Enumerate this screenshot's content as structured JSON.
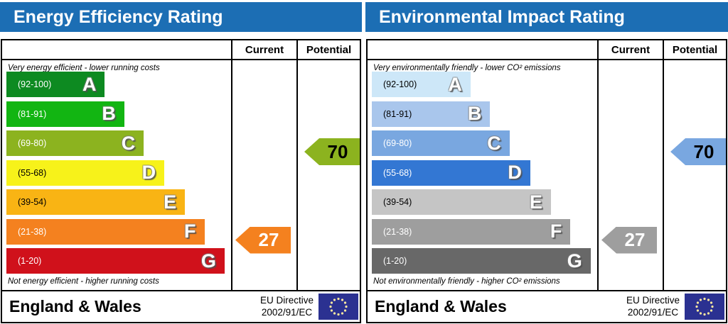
{
  "colors": {
    "header_bg": "#1c6eb4",
    "border": "#000000",
    "flag_bg": "#2b3191",
    "flag_stars": "#ffe9a0"
  },
  "panels": [
    {
      "title": "Energy Efficiency Rating",
      "columns": {
        "current": "Current",
        "potential": "Potential"
      },
      "caption_top": "Very energy efficient - lower running costs",
      "caption_bottom": "Not energy efficient - higher running costs",
      "bands": [
        {
          "letter": "A",
          "range": "(92-100)",
          "color": "#0d8a21",
          "width": "43%",
          "range_color": "#ffffff"
        },
        {
          "letter": "B",
          "range": "(81-91)",
          "color": "#12b512",
          "width": "51.5%",
          "range_color": "#ffffff"
        },
        {
          "letter": "C",
          "range": "(69-80)",
          "color": "#8cb31f",
          "width": "60%",
          "range_color": "#ffffff"
        },
        {
          "letter": "D",
          "range": "(55-68)",
          "color": "#f7f21a",
          "width": "69%",
          "range_color": "#000000"
        },
        {
          "letter": "E",
          "range": "(39-54)",
          "color": "#f9b414",
          "width": "78%",
          "range_color": "#000000"
        },
        {
          "letter": "F",
          "range": "(21-38)",
          "color": "#f4811f",
          "width": "86.5%",
          "range_color": "#ffffff"
        },
        {
          "letter": "G",
          "range": "(1-20)",
          "color": "#d0111b",
          "width": "95.3%",
          "range_color": "#ffffff"
        }
      ],
      "current": {
        "value": "27",
        "text_color": "#ffffff"
      },
      "potential": {
        "value": "70",
        "text_color": "#000000"
      },
      "footer": {
        "region": "England & Wales",
        "directive_line1": "EU Directive",
        "directive_line2": "2002/91/EC"
      }
    },
    {
      "title": "Environmental Impact Rating",
      "columns": {
        "current": "Current",
        "potential": "Potential"
      },
      "caption_top": "Very environmentally friendly - lower CO² emissions",
      "caption_bottom": "Not environmentally friendly - higher CO² emissions",
      "bands": [
        {
          "letter": "A",
          "range": "(92-100)",
          "color": "#cde7f8",
          "width": "43%",
          "range_color": "#000000"
        },
        {
          "letter": "B",
          "range": "(81-91)",
          "color": "#a9c6ec",
          "width": "51.5%",
          "range_color": "#000000"
        },
        {
          "letter": "C",
          "range": "(69-80)",
          "color": "#79a7e0",
          "width": "60%",
          "range_color": "#ffffff"
        },
        {
          "letter": "D",
          "range": "(55-68)",
          "color": "#3377d3",
          "width": "69%",
          "range_color": "#ffffff"
        },
        {
          "letter": "E",
          "range": "(39-54)",
          "color": "#c5c5c5",
          "width": "78%",
          "range_color": "#000000"
        },
        {
          "letter": "F",
          "range": "(21-38)",
          "color": "#9e9e9e",
          "width": "86.5%",
          "range_color": "#ffffff"
        },
        {
          "letter": "G",
          "range": "(1-20)",
          "color": "#686868",
          "width": "95.3%",
          "range_color": "#ffffff"
        }
      ],
      "current": {
        "value": "27",
        "text_color": "#ffffff"
      },
      "potential": {
        "value": "70",
        "text_color": "#000000"
      },
      "footer": {
        "region": "England & Wales",
        "directive_line1": "EU Directive",
        "directive_line2": "2002/91/EC"
      }
    }
  ],
  "band_thresholds": [
    92,
    81,
    69,
    55,
    39,
    21,
    1
  ],
  "chart_data": [
    {
      "type": "bar",
      "title": "Energy Efficiency Rating",
      "categories": [
        "A (92-100)",
        "B (81-91)",
        "C (69-80)",
        "D (55-68)",
        "E (39-54)",
        "F (21-38)",
        "G (1-20)"
      ],
      "series": [
        {
          "name": "Current",
          "values": [
            27
          ]
        },
        {
          "name": "Potential",
          "values": [
            70
          ]
        }
      ],
      "current_rating": 27,
      "current_band": "F",
      "potential_rating": 70,
      "potential_band": "C",
      "xlabel": "",
      "ylabel": "",
      "annotations": [
        "Very energy efficient - lower running costs",
        "Not energy efficient - higher running costs"
      ]
    },
    {
      "type": "bar",
      "title": "Environmental Impact Rating",
      "categories": [
        "A (92-100)",
        "B (81-91)",
        "C (69-80)",
        "D (55-68)",
        "E (39-54)",
        "F (21-38)",
        "G (1-20)"
      ],
      "series": [
        {
          "name": "Current",
          "values": [
            27
          ]
        },
        {
          "name": "Potential",
          "values": [
            70
          ]
        }
      ],
      "current_rating": 27,
      "current_band": "F",
      "potential_rating": 70,
      "potential_band": "C",
      "xlabel": "",
      "ylabel": "",
      "annotations": [
        "Very environmentally friendly - lower CO² emissions",
        "Not environmentally friendly - higher CO² emissions"
      ]
    }
  ]
}
